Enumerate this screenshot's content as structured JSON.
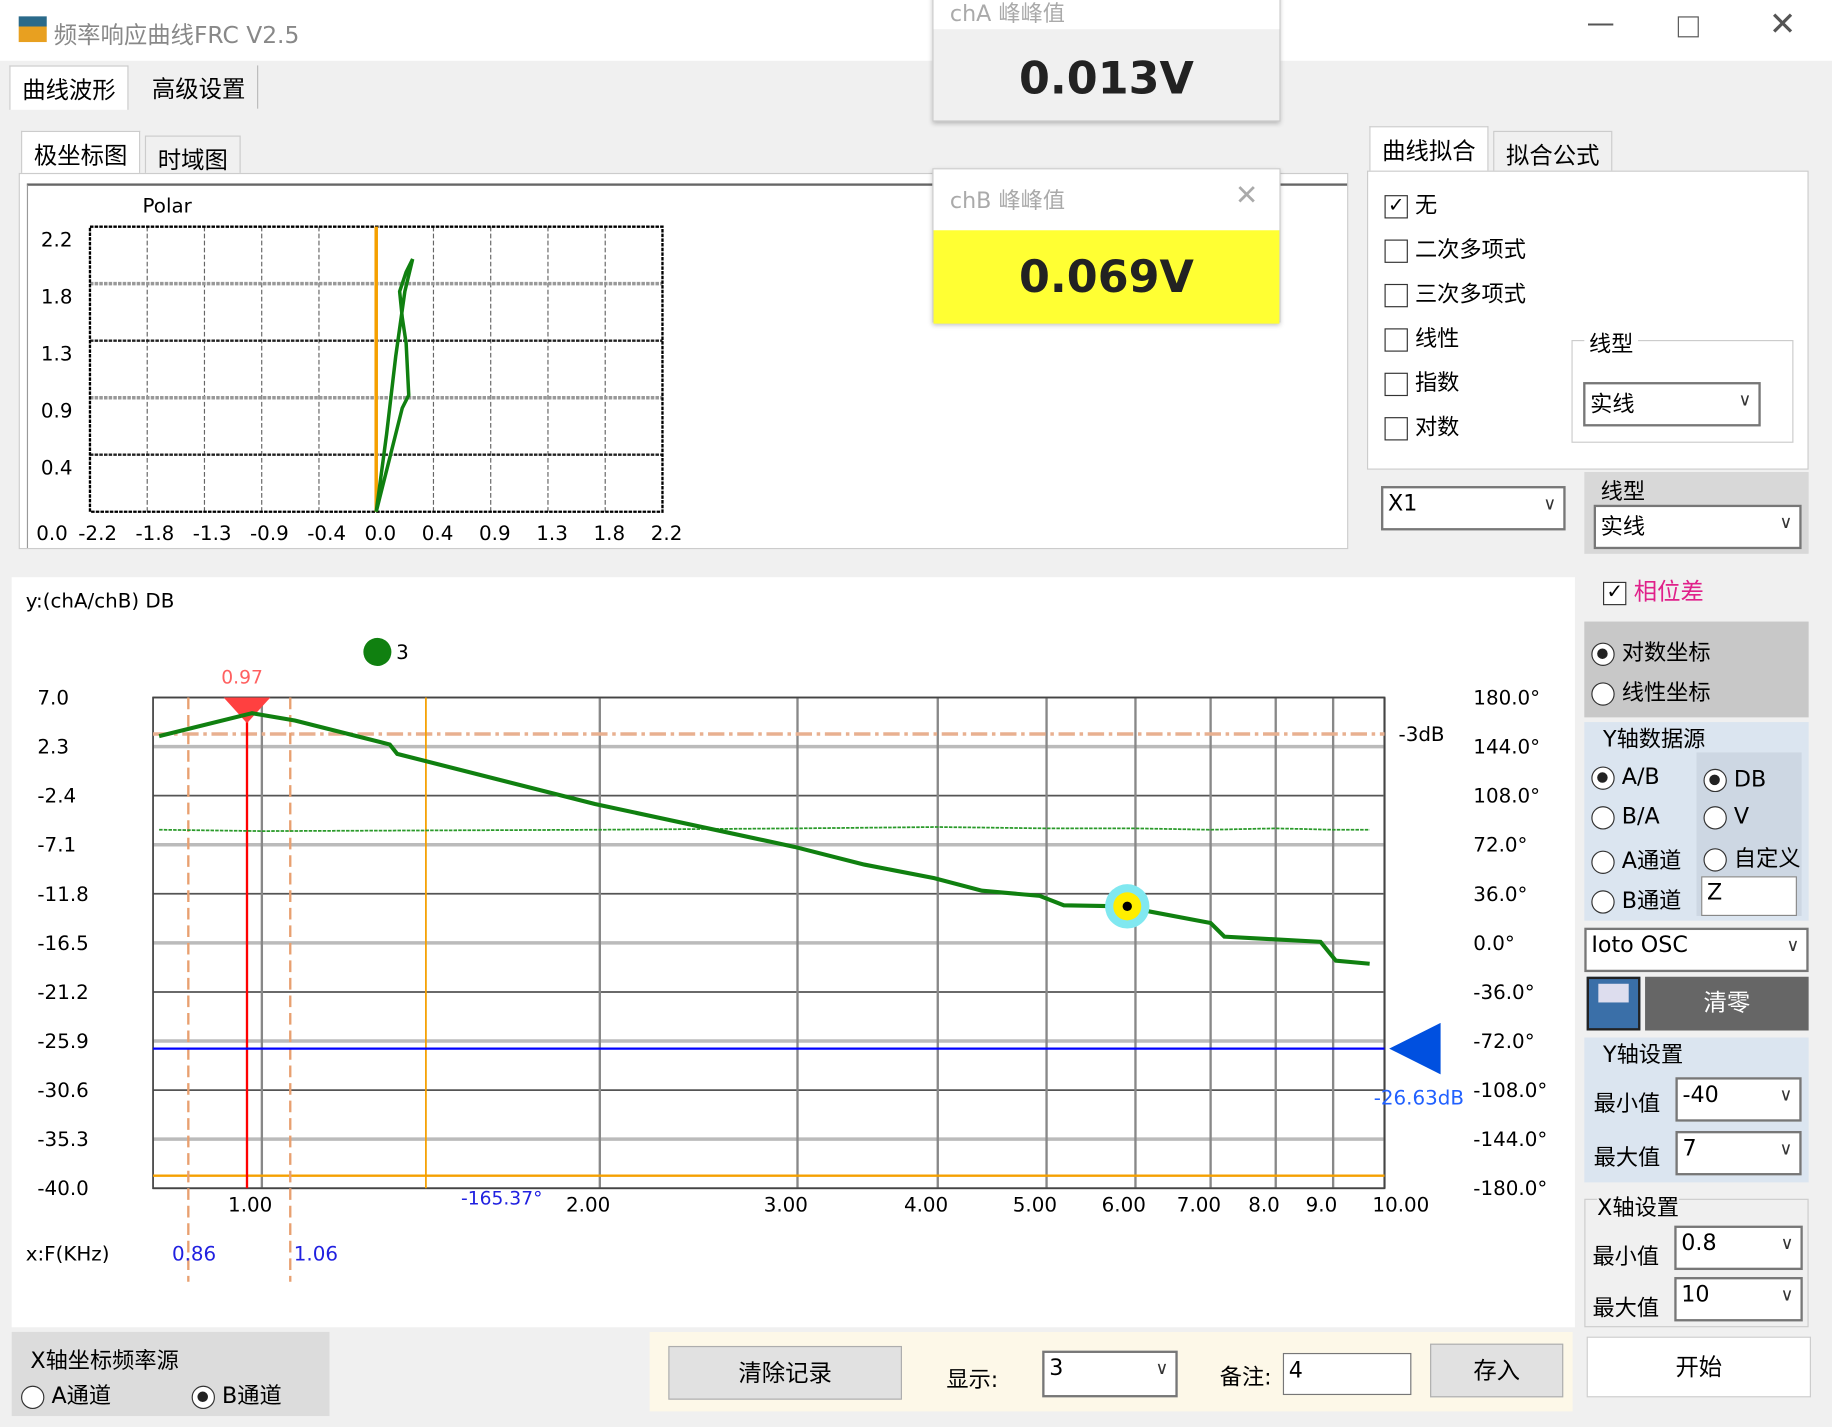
{
  "window": {
    "title": "频率响应曲线FRC V2.5"
  },
  "main_tabs": [
    "曲线波形",
    "高级设置"
  ],
  "sub_tabs": [
    "极坐标图",
    "时域图"
  ],
  "popups": {
    "cha": {
      "title": "chA 峰峰值",
      "value": "0.013V"
    },
    "chb": {
      "title": "chB 峰峰值",
      "value": "0.069V",
      "color": "#ffff33"
    }
  },
  "fit": {
    "tabs": [
      "曲线拟合",
      "拟合公式"
    ],
    "options": [
      {
        "label": "无",
        "checked": true
      },
      {
        "label": "二次多项式",
        "checked": false
      },
      {
        "label": "三次多项式",
        "checked": false
      },
      {
        "label": "线性",
        "checked": false
      },
      {
        "label": "指数",
        "checked": false
      },
      {
        "label": "对数",
        "checked": false
      }
    ],
    "line_type_label": "线型",
    "line_type_value": "实线"
  },
  "x1_select": "X1",
  "line_type2_label": "线型",
  "line_type2_value": "实线",
  "phase_diff": {
    "label": "相位差",
    "checked": true
  },
  "coord": {
    "log": "对数坐标",
    "linear": "线性坐标",
    "selected": "log"
  },
  "y_source": {
    "title": "Y轴数据源",
    "left": [
      {
        "label": "A/B",
        "on": true
      },
      {
        "label": "B/A",
        "on": false
      },
      {
        "label": "A通道",
        "on": false
      },
      {
        "label": "B通道",
        "on": false
      }
    ],
    "right": [
      {
        "label": "DB",
        "on": true
      },
      {
        "label": "V",
        "on": false
      },
      {
        "label": "自定义",
        "on": false
      }
    ],
    "custom_value": "Z"
  },
  "device_select": "Ioto OSC",
  "clear_zero": "清零",
  "y_axis": {
    "title": "Y轴设置",
    "min_label": "最小值",
    "min": "-40",
    "max_label": "最大值",
    "max": "7"
  },
  "x_axis": {
    "title": "X轴设置",
    "min_label": "最小值",
    "min": "0.8",
    "max_label": "最大值",
    "max": "10"
  },
  "start": "开始",
  "x_src": {
    "title": "X轴坐标频率源",
    "a": "A通道",
    "b": "B通道",
    "selected": "b"
  },
  "bottom": {
    "clear": "清除记录",
    "show_label": "显示:",
    "show_value": "3",
    "note_label": "备注:",
    "note_value": "4",
    "save": "存入"
  },
  "chart_data": [
    {
      "type": "line",
      "title": "Polar",
      "xlim": [
        -2.2,
        2.2
      ],
      "ylim": [
        0,
        2.2
      ],
      "xticks": [
        "0.0",
        "-2.2",
        "-1.8",
        "-1.3",
        "-0.9",
        "-0.4",
        "0.0",
        "0.4",
        "0.9",
        "1.3",
        "1.8",
        "2.2"
      ],
      "yticks": [
        "2.2",
        "1.8",
        "1.3",
        "0.9",
        "0.4"
      ],
      "series": [
        {
          "color": "#108010",
          "points": [
            [
              0,
              0
            ],
            [
              0.1,
              0.4
            ],
            [
              0.2,
              0.8
            ],
            [
              0.25,
              0.9
            ],
            [
              0.23,
              1.3
            ],
            [
              0.2,
              1.5
            ],
            [
              0.18,
              1.7
            ],
            [
              0.23,
              1.85
            ],
            [
              0.28,
              1.95
            ],
            [
              0.22,
              1.7
            ],
            [
              0.15,
              1.2
            ],
            [
              0.08,
              0.6
            ],
            [
              0,
              0
            ]
          ]
        }
      ],
      "marker_x": 0.0
    },
    {
      "type": "line",
      "ylabel": "y:(chA/chB) DB",
      "xlabel": "x:F(KHz)",
      "xscale": "log",
      "xlim": [
        0.8,
        10
      ],
      "ylim": [
        -40,
        7
      ],
      "y2lim": [
        -180,
        180
      ],
      "yticks": [
        "7.0",
        "2.3",
        "-2.4",
        "-7.1",
        "-11.8",
        "-16.5",
        "-21.2",
        "-25.9",
        "-30.6",
        "-35.3",
        "-40.0"
      ],
      "y2ticks": [
        "180.0°",
        "144.0°",
        "108.0°",
        "72.0°",
        "36.0°",
        "0.0°",
        "-36.0°",
        "-72.0°",
        "-108.0°",
        "-144.0°",
        "-180.0°"
      ],
      "xticks": [
        {
          "v": 1,
          "t": "1.00"
        },
        {
          "v": 2,
          "t": "2.00"
        },
        {
          "v": 3,
          "t": "3.00"
        },
        {
          "v": 4,
          "t": "4.00"
        },
        {
          "v": 5,
          "t": "5.00"
        },
        {
          "v": 6,
          "t": "6.00"
        },
        {
          "v": 7,
          "t": "7.00"
        },
        {
          "v": 8,
          "t": "8.0"
        },
        {
          "v": 9,
          "t": "9.0"
        },
        {
          "v": 10,
          "t": "10.00"
        }
      ],
      "gain": {
        "color": "#108010",
        "points": [
          [
            0.81,
            3.3
          ],
          [
            0.98,
            5.5
          ],
          [
            1.07,
            4.8
          ],
          [
            1.3,
            2.5
          ],
          [
            1.32,
            1.6
          ],
          [
            1.98,
            -3.2
          ],
          [
            2.98,
            -7.3
          ],
          [
            3.44,
            -9.0
          ],
          [
            3.97,
            -10.3
          ],
          [
            4.38,
            -11.5
          ],
          [
            4.93,
            -12.0
          ],
          [
            5.18,
            -12.9
          ],
          [
            5.84,
            -13.0
          ],
          [
            7.0,
            -14.6
          ],
          [
            7.2,
            -15.9
          ],
          [
            8.77,
            -16.4
          ],
          [
            9.05,
            -18.2
          ],
          [
            9.7,
            -18.5
          ]
        ]
      },
      "phase": {
        "color": "#2a9a2a",
        "points": [
          [
            0.81,
            83
          ],
          [
            1.0,
            82
          ],
          [
            2.0,
            83
          ],
          [
            3.0,
            84
          ],
          [
            4.0,
            85
          ],
          [
            5.0,
            84
          ],
          [
            6.0,
            84
          ],
          [
            7.0,
            83
          ],
          [
            8.0,
            84
          ],
          [
            9.0,
            83
          ],
          [
            9.7,
            83
          ]
        ]
      },
      "peak": {
        "x": 0.97,
        "label": "0.97"
      },
      "bw_lines": [
        {
          "x": 0.86,
          "label": "0.86"
        },
        {
          "x": 1.06,
          "label": "1.06"
        }
      ],
      "minus3db": {
        "y": 3.5,
        "label": "-3dB"
      },
      "cursor": {
        "x": 1.4,
        "label": "-165.37°"
      },
      "level": {
        "y": -26.63,
        "label": "-26.63dB",
        "color": "#0000ff"
      },
      "orange_level": -38.8,
      "point_marker": {
        "x": 5.9,
        "y": -13.0
      },
      "record_legend": "3"
    }
  ]
}
